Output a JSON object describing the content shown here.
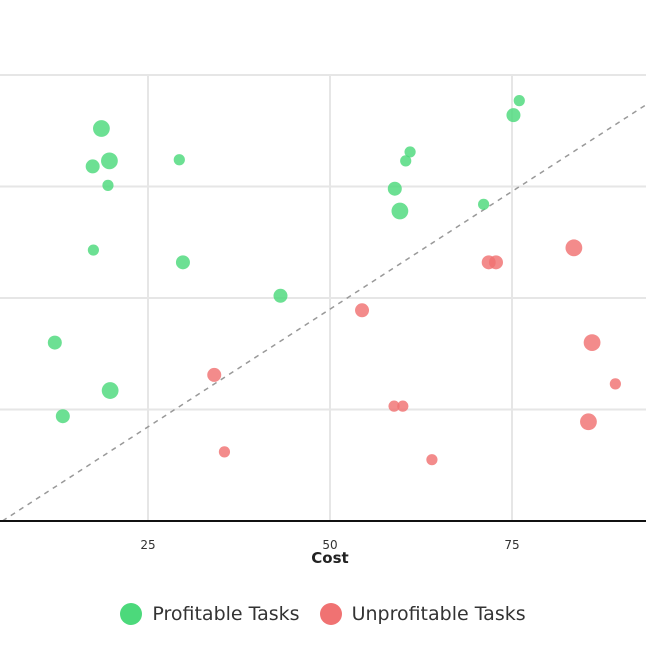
{
  "chart_data": {
    "type": "scatter",
    "xlabel": "Cost",
    "ylabel": "",
    "x_ticks": [
      25,
      50,
      75
    ],
    "xlim": [
      5,
      95
    ],
    "ylim": [
      0,
      4
    ],
    "y_gridlines": [
      1,
      2,
      3,
      4
    ],
    "grid": true,
    "legend_position": "bottom",
    "reference_line": {
      "style": "dashed",
      "x": [
        5,
        95
      ],
      "y": [
        0,
        3.8
      ]
    },
    "series": [
      {
        "name": "Profitable Tasks",
        "color": "#4cd97b",
        "points": [
          {
            "x": 18.6,
            "y": 3.52,
            "s": 1.2
          },
          {
            "x": 19.7,
            "y": 3.23,
            "s": 1.2
          },
          {
            "x": 17.4,
            "y": 3.18,
            "s": 1.0
          },
          {
            "x": 19.5,
            "y": 3.01,
            "s": 0.8
          },
          {
            "x": 29.3,
            "y": 3.24,
            "s": 0.8
          },
          {
            "x": 17.5,
            "y": 2.43,
            "s": 0.8
          },
          {
            "x": 29.8,
            "y": 2.32,
            "s": 1.0
          },
          {
            "x": 43.2,
            "y": 2.02,
            "s": 1.0
          },
          {
            "x": 12.2,
            "y": 1.6,
            "s": 1.0
          },
          {
            "x": 19.8,
            "y": 1.17,
            "s": 1.2
          },
          {
            "x": 13.3,
            "y": 0.94,
            "s": 1.0
          },
          {
            "x": 61.0,
            "y": 3.31,
            "s": 0.8
          },
          {
            "x": 60.4,
            "y": 3.23,
            "s": 0.8
          },
          {
            "x": 58.9,
            "y": 2.98,
            "s": 1.0
          },
          {
            "x": 59.6,
            "y": 2.78,
            "s": 1.2
          },
          {
            "x": 71.1,
            "y": 2.84,
            "s": 0.8
          },
          {
            "x": 75.2,
            "y": 3.64,
            "s": 1.0
          },
          {
            "x": 76.0,
            "y": 3.77,
            "s": 0.8
          }
        ]
      },
      {
        "name": "Unprofitable Tasks",
        "color": "#f07272",
        "points": [
          {
            "x": 83.5,
            "y": 2.45,
            "s": 1.2
          },
          {
            "x": 71.8,
            "y": 2.32,
            "s": 1.0
          },
          {
            "x": 72.8,
            "y": 2.32,
            "s": 1.0
          },
          {
            "x": 54.4,
            "y": 1.89,
            "s": 1.0
          },
          {
            "x": 86.0,
            "y": 1.6,
            "s": 1.2
          },
          {
            "x": 89.2,
            "y": 1.23,
            "s": 0.8
          },
          {
            "x": 34.1,
            "y": 1.31,
            "s": 1.0
          },
          {
            "x": 58.8,
            "y": 1.03,
            "s": 0.8
          },
          {
            "x": 60.0,
            "y": 1.03,
            "s": 0.8
          },
          {
            "x": 85.5,
            "y": 0.89,
            "s": 1.2
          },
          {
            "x": 35.5,
            "y": 0.62,
            "s": 0.8
          },
          {
            "x": 64.0,
            "y": 0.55,
            "s": 0.8
          }
        ]
      }
    ]
  },
  "legend": {
    "profitable_label": "Profitable Tasks",
    "unprofitable_label": "Unprofitable Tasks"
  }
}
